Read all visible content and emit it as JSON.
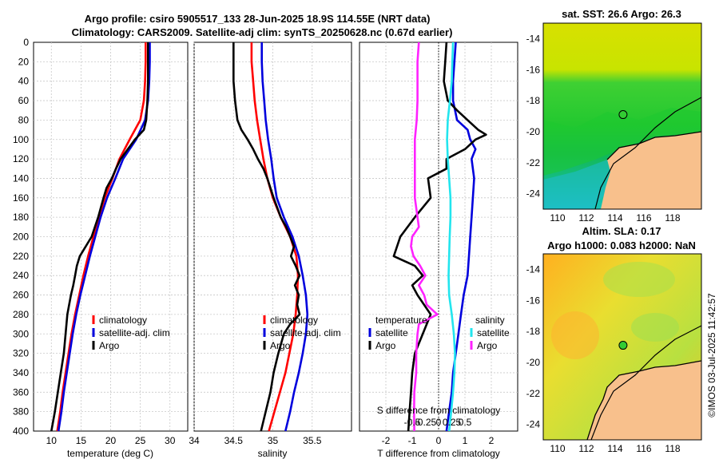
{
  "header": {
    "title_line1": "Argo profile: csiro 5905517_133 28-Jun-2025 18.9S 114.55E (NRT data)",
    "title_line2": "Climatology: CARS2009. Satellite-adj clim: synTS_20250628.nc (0.67d earlier)"
  },
  "colors": {
    "climatology": "#ff0000",
    "satellite": "#0000dd",
    "argo": "#000000",
    "t_diff": "#ff22ff",
    "s_diff": "#22e5ee",
    "grid": "#c8c8c8",
    "land": "#f8c08c"
  },
  "timestamp_label": "©IMOS 03-Jul-2025 11:42:57",
  "chart_data": [
    {
      "id": "temperature",
      "type": "line",
      "xlabel": "temperature (deg C)",
      "ylabel": "",
      "xlim": [
        7,
        33
      ],
      "ylim": [
        0,
        400
      ],
      "y_reversed": true,
      "xticks": [
        "10",
        "15",
        "20",
        "25",
        "30"
      ],
      "xtick_values": [
        10,
        15,
        20,
        25,
        30
      ],
      "yticks": [
        "0",
        "20",
        "40",
        "60",
        "80",
        "100",
        "120",
        "140",
        "160",
        "180",
        "200",
        "220",
        "240",
        "260",
        "280",
        "300",
        "320",
        "340",
        "360",
        "380",
        "400"
      ],
      "ytick_values": [
        0,
        20,
        40,
        60,
        80,
        100,
        120,
        140,
        160,
        180,
        200,
        220,
        240,
        260,
        280,
        300,
        320,
        340,
        360,
        380,
        400
      ],
      "legend": [
        {
          "name": "climatology",
          "color": "#ff0000"
        },
        {
          "name": "satellite-adj. clim",
          "color": "#0000dd"
        },
        {
          "name": "Argo",
          "color": "#000000"
        }
      ],
      "series": [
        {
          "name": "climatology",
          "color": "#ff0000",
          "depth": [
            0,
            20,
            40,
            60,
            80,
            100,
            120,
            140,
            160,
            180,
            200,
            220,
            240,
            260,
            280,
            300,
            320,
            340,
            360,
            380,
            400
          ],
          "values": [
            25.9,
            25.9,
            25.8,
            25.6,
            25.0,
            23.2,
            21.5,
            20.3,
            19.0,
            18.0,
            17.1,
            16.2,
            15.4,
            14.7,
            14.0,
            13.4,
            12.9,
            12.4,
            11.9,
            11.5,
            11.0
          ]
        },
        {
          "name": "satellite-adj. clim",
          "color": "#0000dd",
          "depth": [
            0,
            20,
            40,
            60,
            80,
            100,
            120,
            140,
            160,
            180,
            200,
            220,
            240,
            260,
            280,
            300,
            320,
            340,
            360,
            380,
            400
          ],
          "values": [
            26.6,
            26.6,
            26.5,
            26.3,
            25.8,
            24.3,
            22.1,
            20.8,
            19.4,
            18.3,
            17.4,
            16.5,
            15.7,
            14.9,
            14.2,
            13.6,
            13.1,
            12.6,
            12.1,
            11.7,
            11.2
          ]
        },
        {
          "name": "Argo",
          "color": "#000000",
          "depth": [
            0,
            20,
            40,
            60,
            80,
            90,
            100,
            110,
            120,
            130,
            140,
            150,
            160,
            180,
            200,
            220,
            230,
            240,
            250,
            260,
            280,
            300,
            320,
            340,
            360,
            380,
            400
          ],
          "values": [
            26.3,
            26.3,
            26.3,
            26.2,
            26.0,
            25.6,
            24.1,
            22.9,
            21.7,
            20.9,
            20.2,
            19.3,
            18.8,
            17.9,
            16.8,
            14.8,
            14.3,
            14.0,
            13.7,
            13.3,
            12.7,
            12.4,
            12.1,
            11.6,
            11.1,
            10.6,
            10.0
          ]
        }
      ]
    },
    {
      "id": "salinity",
      "type": "line",
      "xlabel": "salinity",
      "xlim": [
        34,
        36
      ],
      "ylim": [
        0,
        400
      ],
      "y_reversed": true,
      "xticks": [
        "34",
        "34.5",
        "35",
        "35.5"
      ],
      "xtick_values": [
        34,
        34.5,
        35,
        35.5
      ],
      "legend": [
        {
          "name": "climatology",
          "color": "#ff0000"
        },
        {
          "name": "satellite-adj. clim",
          "color": "#0000dd"
        },
        {
          "name": "Argo",
          "color": "#000000"
        }
      ],
      "series": [
        {
          "name": "climatology",
          "color": "#ff0000",
          "depth": [
            0,
            20,
            40,
            60,
            80,
            100,
            120,
            140,
            160,
            180,
            200,
            220,
            240,
            260,
            280,
            300,
            320,
            340,
            360,
            380,
            400
          ],
          "values": [
            34.73,
            34.73,
            34.75,
            34.77,
            34.8,
            34.84,
            34.88,
            34.93,
            35.0,
            35.1,
            35.22,
            35.3,
            35.32,
            35.31,
            35.29,
            35.26,
            35.21,
            35.16,
            35.09,
            35.02,
            34.95
          ]
        },
        {
          "name": "satellite-adj. clim",
          "color": "#0000dd",
          "depth": [
            0,
            20,
            40,
            60,
            80,
            100,
            120,
            140,
            160,
            180,
            200,
            220,
            240,
            260,
            280,
            300,
            320,
            340,
            360,
            380,
            400
          ],
          "values": [
            34.86,
            34.86,
            34.87,
            34.89,
            34.91,
            34.94,
            34.98,
            35.01,
            35.05,
            35.14,
            35.25,
            35.33,
            35.38,
            35.42,
            35.44,
            35.42,
            35.38,
            35.33,
            35.27,
            35.22,
            35.16
          ]
        },
        {
          "name": "Argo",
          "color": "#000000",
          "depth": [
            0,
            20,
            40,
            60,
            80,
            90,
            100,
            110,
            120,
            130,
            140,
            160,
            180,
            190,
            200,
            210,
            220,
            230,
            240,
            250,
            260,
            270,
            280,
            290,
            300,
            320,
            340,
            360,
            380,
            400
          ],
          "values": [
            34.5,
            34.5,
            34.5,
            34.52,
            34.55,
            34.6,
            34.68,
            34.75,
            34.81,
            34.88,
            34.93,
            35.01,
            35.1,
            35.17,
            35.22,
            35.27,
            35.23,
            35.29,
            35.34,
            35.28,
            35.33,
            35.31,
            35.34,
            35.22,
            35.14,
            35.07,
            35.01,
            34.97,
            34.91,
            34.85
          ]
        }
      ]
    },
    {
      "id": "differences",
      "type": "line",
      "xlabel": "T difference from climatology",
      "xlabel_top": "S difference from climatology",
      "xlim": [
        -3,
        3
      ],
      "ylim": [
        0,
        400
      ],
      "y_reversed": true,
      "xticks": [
        "-2",
        "-1",
        "0",
        "1",
        "2"
      ],
      "xtick_values": [
        -2,
        -1,
        0,
        1,
        2
      ],
      "s_xticks": [
        "-0.5",
        "-0.25",
        "0",
        "0.25",
        "0.5"
      ],
      "s_xtick_values": [
        -0.5,
        -0.25,
        0,
        0.25,
        0.5
      ],
      "legend_left_title": "temperature",
      "legend_right_title": "salinity",
      "legend_left": [
        {
          "name": "satellite",
          "color": "#0000dd"
        },
        {
          "name": "Argo",
          "color": "#000000"
        }
      ],
      "legend_right": [
        {
          "name": "satellite",
          "color": "#22e5ee"
        },
        {
          "name": "Argo",
          "color": "#ff22ff"
        }
      ],
      "series": [
        {
          "name": "temperature satellite",
          "color": "#0000dd",
          "depth": [
            0,
            20,
            40,
            60,
            80,
            90,
            100,
            110,
            120,
            140,
            160,
            180,
            200,
            220,
            240,
            260,
            280,
            300,
            320,
            340,
            360,
            380,
            400
          ],
          "values": [
            0.65,
            0.6,
            0.55,
            0.55,
            0.7,
            1.1,
            1.2,
            1.4,
            1.25,
            1.35,
            1.3,
            1.25,
            1.2,
            1.15,
            1.1,
            0.95,
            0.85,
            0.75,
            0.65,
            0.55,
            0.5,
            0.4,
            0.3
          ]
        },
        {
          "name": "temperature Argo",
          "color": "#000000",
          "depth": [
            0,
            20,
            40,
            60,
            70,
            80,
            90,
            95,
            100,
            110,
            120,
            130,
            140,
            160,
            180,
            200,
            220,
            230,
            240,
            250,
            260,
            280,
            300,
            320,
            340,
            360,
            380,
            400
          ],
          "values": [
            0.3,
            0.25,
            0.2,
            0.35,
            0.7,
            1.1,
            1.5,
            1.8,
            1.4,
            1.0,
            0.3,
            0.3,
            -0.4,
            -0.3,
            -0.9,
            -1.45,
            -1.7,
            -0.9,
            -0.6,
            -1.0,
            -0.8,
            -0.3,
            -0.6,
            -0.9,
            -1.0,
            -1.05,
            -1.1,
            -1.15
          ]
        },
        {
          "name": "salinity satellite",
          "color": "#22e5ee",
          "depth": [
            0,
            20,
            40,
            60,
            80,
            100,
            120,
            140,
            160,
            180,
            200,
            220,
            240,
            260,
            280,
            300,
            320,
            340,
            360,
            380,
            400
          ],
          "values": [
            0.55,
            0.52,
            0.5,
            0.43,
            0.35,
            0.32,
            0.35,
            0.4,
            0.45,
            0.45,
            0.42,
            0.4,
            0.38,
            0.4,
            0.5,
            0.58,
            0.62,
            0.6,
            0.55,
            0.48,
            0.4
          ]
        },
        {
          "name": "salinity Argo",
          "color": "#ff22ff",
          "depth": [
            0,
            20,
            40,
            60,
            80,
            100,
            120,
            140,
            160,
            180,
            190,
            200,
            210,
            220,
            230,
            240,
            250,
            260,
            270,
            280,
            290,
            300,
            320,
            340,
            360,
            380,
            400
          ],
          "values": [
            -0.75,
            -0.8,
            -0.8,
            -0.8,
            -0.83,
            -0.9,
            -0.9,
            -0.9,
            -0.9,
            -0.8,
            -0.75,
            -1.0,
            -1.05,
            -0.95,
            -0.7,
            -0.5,
            -0.75,
            -0.55,
            -0.45,
            -0.05,
            -0.75,
            -0.8,
            -0.85,
            -0.85,
            -0.92,
            -0.93,
            -0.92
          ]
        }
      ]
    },
    {
      "id": "sst-map",
      "type": "heatmap",
      "title": "sat. SST: 26.6  Argo: 26.3",
      "xlim": [
        109,
        120
      ],
      "ylim": [
        -25,
        -13
      ],
      "xticks": [
        "110",
        "112",
        "114",
        "116",
        "118"
      ],
      "xtick_values": [
        110,
        112,
        114,
        116,
        118
      ],
      "yticks": [
        "-14",
        "-16",
        "-18",
        "-20",
        "-22",
        "-24"
      ],
      "ytick_values": [
        -14,
        -16,
        -18,
        -20,
        -22,
        -24
      ],
      "float_position": {
        "lon": 114.55,
        "lat": -18.9
      }
    },
    {
      "id": "sla-map",
      "type": "heatmap",
      "title": "Altim. SLA: 0.17",
      "subtitle": "Argo h1000: 0.083 h2000: NaN",
      "xlim": [
        109,
        120
      ],
      "ylim": [
        -25,
        -13
      ],
      "xticks": [
        "110",
        "112",
        "114",
        "116",
        "118"
      ],
      "xtick_values": [
        110,
        112,
        114,
        116,
        118
      ],
      "yticks": [
        "-14",
        "-16",
        "-18",
        "-20",
        "-22",
        "-24"
      ],
      "ytick_values": [
        -14,
        -16,
        -18,
        -20,
        -22,
        -24
      ],
      "float_position": {
        "lon": 114.55,
        "lat": -18.9
      }
    }
  ]
}
